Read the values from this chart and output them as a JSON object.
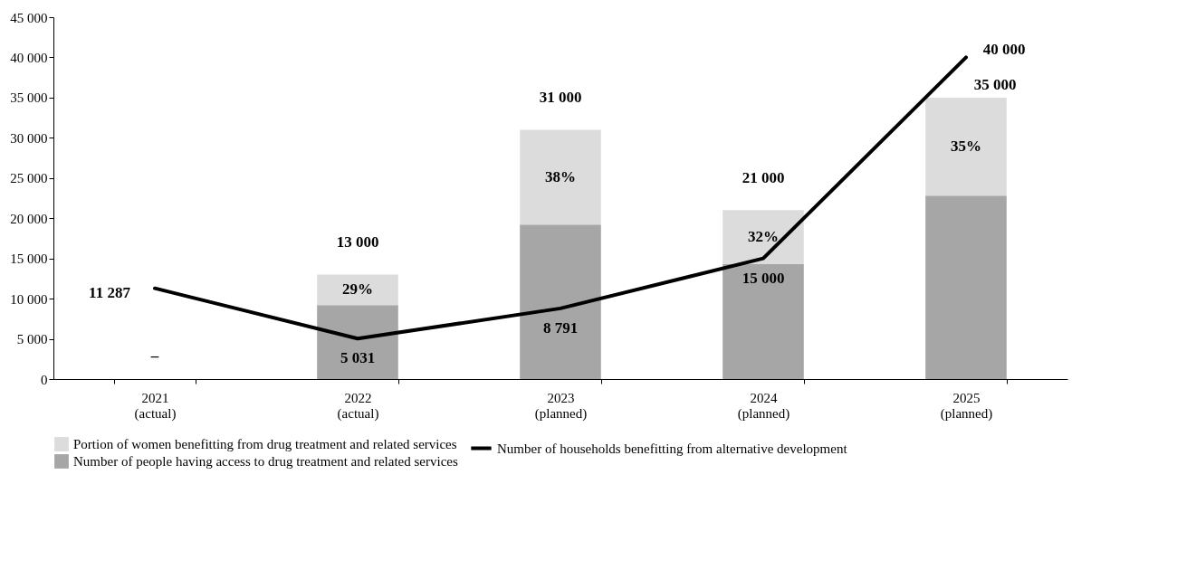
{
  "chart_data": {
    "type": "bar",
    "stacked": true,
    "categories": [
      "2021\n(actual)",
      "2022\n(actual)",
      "2023\n(planned)",
      "2024\n(planned)",
      "2025\n(planned)"
    ],
    "series": [
      {
        "name": "Number of  people having access to drug treatment and related services",
        "type": "bar",
        "color": "#a6a6a6",
        "values": [
          null,
          9200,
          19200,
          14300,
          22800
        ],
        "value_labels": [
          "–",
          null,
          null,
          null,
          null
        ]
      },
      {
        "name": "Portion of women benefitting from drug treatment and related services",
        "type": "bar",
        "color": "#dcdcdc",
        "values": [
          null,
          3800,
          11800,
          6700,
          12200
        ]
      },
      {
        "name": "Number of households benefitting from alternative development",
        "type": "line",
        "color": "#000000",
        "values": [
          11287,
          5031,
          8791,
          15000,
          40000
        ],
        "value_labels": [
          "11 287",
          "5 031",
          "8 791",
          "15 000",
          "40 000"
        ]
      }
    ],
    "totals": [
      null,
      "13 000",
      "31 000",
      "21 000",
      "35 000"
    ],
    "annotations": [
      "29%",
      "38%",
      "32%",
      "35%"
    ],
    "ylim": [
      0,
      45000
    ],
    "yticks": [
      0,
      {
        "value": 5000,
        "label": "5 000"
      },
      {
        "value": 10000,
        "label": "10 000"
      },
      {
        "value": 15000,
        "label": "15 000"
      },
      {
        "value": 20000,
        "label": "20 000"
      },
      {
        "value": 25000,
        "label": "25 000"
      },
      {
        "value": 30000,
        "label": "30 000"
      },
      {
        "value": 35000,
        "label": "35 000"
      },
      {
        "value": 40000,
        "label": "40 000"
      },
      {
        "value": 45000,
        "label": "45 000"
      }
    ],
    "grid": false,
    "legend": "bottom",
    "marker": "none",
    "line_style": "solid"
  }
}
